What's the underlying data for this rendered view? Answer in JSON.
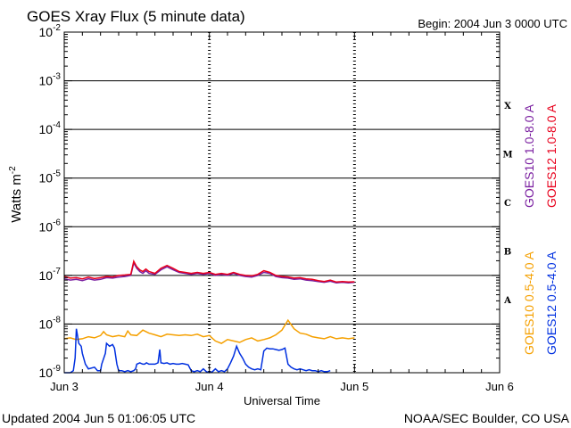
{
  "chart_data": {
    "type": "line",
    "title": "GOES Xray Flux (5 minute data)",
    "begin_label": "Begin:  2004 Jun 3 0000 UTC",
    "xlabel": "Universal Time",
    "ylabel_base": "Watts m",
    "ylabel_exp": "-2",
    "y_scale": "log",
    "ylim": [
      1e-09,
      0.01
    ],
    "xlim": [
      0,
      72
    ],
    "x_unit": "hours since 2004 Jun 3 0000 UTC",
    "x_ticks": [
      {
        "label": "Jun 3",
        "value": 0
      },
      {
        "label": "Jun 4",
        "value": 24
      },
      {
        "label": "Jun 5",
        "value": 48
      },
      {
        "label": "Jun 6",
        "value": 72
      }
    ],
    "y_ticks": [
      {
        "base": "10",
        "exp": "-9",
        "value": 1e-09
      },
      {
        "base": "10",
        "exp": "-8",
        "value": 1e-08
      },
      {
        "base": "10",
        "exp": "-7",
        "value": 1e-07
      },
      {
        "base": "10",
        "exp": "-6",
        "value": 1e-06
      },
      {
        "base": "10",
        "exp": "-5",
        "value": 1e-05
      },
      {
        "base": "10",
        "exp": "-4",
        "value": 0.0001
      },
      {
        "base": "10",
        "exp": "-3",
        "value": 0.001
      },
      {
        "base": "10",
        "exp": "-2",
        "value": 0.01
      }
    ],
    "flare_classes": [
      {
        "label": "X",
        "value": 0.000316
      },
      {
        "label": "M",
        "value": 3.16e-05
      },
      {
        "label": "C",
        "value": 3.16e-06
      },
      {
        "label": "B",
        "value": 3.16e-07
      },
      {
        "label": "A",
        "value": 3.16e-08
      }
    ],
    "series": [
      {
        "name": "GOES10 1.0-8.0 A",
        "color": "#7a1fa0",
        "x": [
          0,
          1,
          2,
          3,
          4,
          5,
          6,
          7,
          8,
          9,
          10,
          11,
          11.5,
          12,
          12.5,
          13,
          13.5,
          14,
          15,
          16,
          17,
          18,
          19,
          20,
          21,
          22,
          23,
          24,
          25,
          26,
          27,
          28,
          29,
          30,
          31,
          32,
          33,
          34,
          35,
          36,
          37,
          38,
          39,
          40,
          41,
          42,
          43,
          44,
          45,
          46,
          47,
          48
        ],
        "y": [
          8.5e-08,
          8e-08,
          8.3e-08,
          7.8e-08,
          8.5e-08,
          8e-08,
          8.3e-08,
          9e-08,
          8.8e-08,
          9.2e-08,
          9.5e-08,
          1e-07,
          1.8e-07,
          1.4e-07,
          1.2e-07,
          1.1e-07,
          1.25e-07,
          1.1e-07,
          1.05e-07,
          1.3e-07,
          1.5e-07,
          1.3e-07,
          1.15e-07,
          1.1e-07,
          1.05e-07,
          1.1e-07,
          1.05e-07,
          1.1e-07,
          1e-07,
          1.05e-07,
          1e-07,
          1.1e-07,
          1e-07,
          9.5e-08,
          9.2e-08,
          1e-07,
          1.15e-07,
          1.1e-07,
          9.5e-08,
          9e-08,
          8.8e-08,
          8.3e-08,
          8.5e-08,
          8e-08,
          7.8e-08,
          7.5e-08,
          7.2e-08,
          7.6e-08,
          7e-08,
          7.2e-08,
          7e-08,
          7.2e-08
        ]
      },
      {
        "name": "GOES12 1.0-8.0 A",
        "color": "#e8001c",
        "x": [
          0,
          1,
          2,
          3,
          4,
          5,
          6,
          7,
          8,
          9,
          10,
          11,
          11.5,
          12,
          12.5,
          13,
          13.5,
          14,
          15,
          16,
          17,
          18,
          19,
          20,
          21,
          22,
          23,
          24,
          25,
          26,
          27,
          28,
          29,
          30,
          31,
          32,
          33,
          34,
          35,
          36,
          37,
          38,
          39,
          40,
          41,
          42,
          43,
          44,
          45,
          46,
          47,
          48
        ],
        "y": [
          9.5e-08,
          8.8e-08,
          9e-08,
          8.5e-08,
          9.2e-08,
          8.6e-08,
          9e-08,
          9.5e-08,
          9.3e-08,
          1e-07,
          1.02e-07,
          1.05e-07,
          1.95e-07,
          1.5e-07,
          1.3e-07,
          1.2e-07,
          1.35e-07,
          1.2e-07,
          1.1e-07,
          1.4e-07,
          1.6e-07,
          1.4e-07,
          1.2e-07,
          1.15e-07,
          1.1e-07,
          1.15e-07,
          1.1e-07,
          1.15e-07,
          1.05e-07,
          1.1e-07,
          1.05e-07,
          1.15e-07,
          1.05e-07,
          1e-07,
          9.8e-08,
          1.05e-07,
          1.25e-07,
          1.15e-07,
          1e-07,
          9.5e-08,
          9.3e-08,
          8.8e-08,
          9e-08,
          8.5e-08,
          8.3e-08,
          7.8e-08,
          7.5e-08,
          8e-08,
          7.3e-08,
          7.5e-08,
          7.3e-08,
          7.4e-08
        ]
      },
      {
        "name": "GOES10 0.5-4.0 A",
        "color": "#f5a000",
        "x": [
          0,
          1,
          2,
          3,
          4,
          5,
          6,
          6.5,
          7,
          8,
          9,
          10,
          10.5,
          11,
          12,
          13,
          14,
          15,
          16,
          17,
          18,
          19,
          20,
          21,
          22,
          23,
          24,
          25,
          26,
          27,
          28,
          29,
          30,
          31,
          32,
          33,
          34,
          35,
          36,
          37,
          38,
          39,
          40,
          41,
          42,
          43,
          44,
          45,
          46,
          47,
          48
        ],
        "y": [
          5e-09,
          5.2e-09,
          4.8e-09,
          5e-09,
          5.5e-09,
          5.2e-09,
          5.8e-09,
          7e-09,
          6e-09,
          5.5e-09,
          5.8e-09,
          5.5e-09,
          7.2e-09,
          6e-09,
          5.8e-09,
          7.5e-09,
          6.5e-09,
          6e-09,
          5.5e-09,
          6.2e-09,
          6e-09,
          5.8e-09,
          6e-09,
          5.8e-09,
          6.2e-09,
          5.5e-09,
          5.8e-09,
          4.5e-09,
          4e-09,
          4.8e-09,
          4.5e-09,
          4.2e-09,
          4.8e-09,
          5.2e-09,
          4.5e-09,
          4.8e-09,
          5.2e-09,
          6e-09,
          7.5e-09,
          1.2e-08,
          8e-09,
          6.5e-09,
          6.2e-09,
          5.5e-09,
          5.2e-09,
          5e-09,
          5.5e-09,
          5e-09,
          5.2e-09,
          5e-09,
          5.2e-09
        ]
      },
      {
        "name": "GOES12 0.5-4.0 A",
        "color": "#0030e0",
        "x": [
          0,
          1,
          1.5,
          1.8,
          2,
          2.4,
          2.8,
          3,
          3.5,
          4,
          5,
          5.5,
          5.8,
          6,
          6.2,
          6.8,
          7,
          7.5,
          8,
          8.3,
          8.7,
          9,
          9.5,
          10,
          10.5,
          11,
          11.5,
          11.8,
          12,
          12.5,
          13,
          13.3,
          13.6,
          14,
          15,
          15.5,
          15.8,
          16,
          16.5,
          17,
          17.5,
          18,
          18.5,
          19,
          19.5,
          20,
          20.5,
          21,
          21.5,
          22,
          22.5,
          23,
          23.5,
          24,
          24.5,
          25,
          25.5,
          26,
          26.5,
          27,
          27.5,
          28,
          28.5,
          29,
          29.5,
          30,
          30.5,
          31,
          31.5,
          32,
          32.5,
          33,
          33.5,
          34,
          34.5,
          35,
          35.5,
          36,
          36.5,
          37,
          37.5,
          38,
          38.5,
          39,
          39.5,
          40,
          40.5,
          41,
          41.5,
          42,
          42.5,
          43,
          43.5,
          44
        ],
        "y": [
          1e-09,
          1e-09,
          1.1e-09,
          2e-09,
          8e-09,
          4e-09,
          3.5e-09,
          2.5e-09,
          1.5e-09,
          1.2e-09,
          1.3e-09,
          1.1e-09,
          1.1e-09,
          1.1e-09,
          1.5e-09,
          2.5e-09,
          4e-09,
          3.5e-09,
          3.8e-09,
          3.2e-09,
          1.5e-09,
          1.1e-09,
          1.1e-09,
          1.05e-09,
          1.1e-09,
          1.05e-09,
          1.1e-09,
          1.2e-09,
          1.5e-09,
          1.6e-09,
          1.5e-09,
          1.5e-09,
          1.6e-09,
          1.5e-09,
          1.5e-09,
          1.6e-09,
          3e-09,
          1.6e-09,
          1.55e-09,
          1.6e-09,
          1.5e-09,
          1.55e-09,
          1.5e-09,
          1.5e-09,
          1.55e-09,
          1.5e-09,
          1.45e-09,
          1.1e-09,
          1.05e-09,
          1.1e-09,
          1.05e-09,
          1.2e-09,
          1.05e-09,
          1e-09,
          1.05e-09,
          1.2e-09,
          1.05e-09,
          1.1e-09,
          1.05e-09,
          1.2e-09,
          1.6e-09,
          2.2e-09,
          3.5e-09,
          2.5e-09,
          2e-09,
          1.5e-09,
          1.3e-09,
          1.2e-09,
          1.15e-09,
          1.2e-09,
          1.15e-09,
          2.8e-09,
          3.2e-09,
          3.1e-09,
          3.1e-09,
          3e-09,
          2.9e-09,
          3e-09,
          3.2e-09,
          1.5e-09,
          1.3e-09,
          1.2e-09,
          1.15e-09,
          1.2e-09,
          1.15e-09,
          1.1e-09,
          1.15e-09,
          1.1e-09,
          1.1e-09,
          1.05e-09,
          1.1e-09,
          1.05e-09,
          1.05e-09,
          1.1e-09
        ]
      }
    ]
  },
  "footer": {
    "updated": "Updated 2004 Jun  5 01:06:05 UTC",
    "credit": "NOAA/SEC Boulder, CO USA"
  }
}
